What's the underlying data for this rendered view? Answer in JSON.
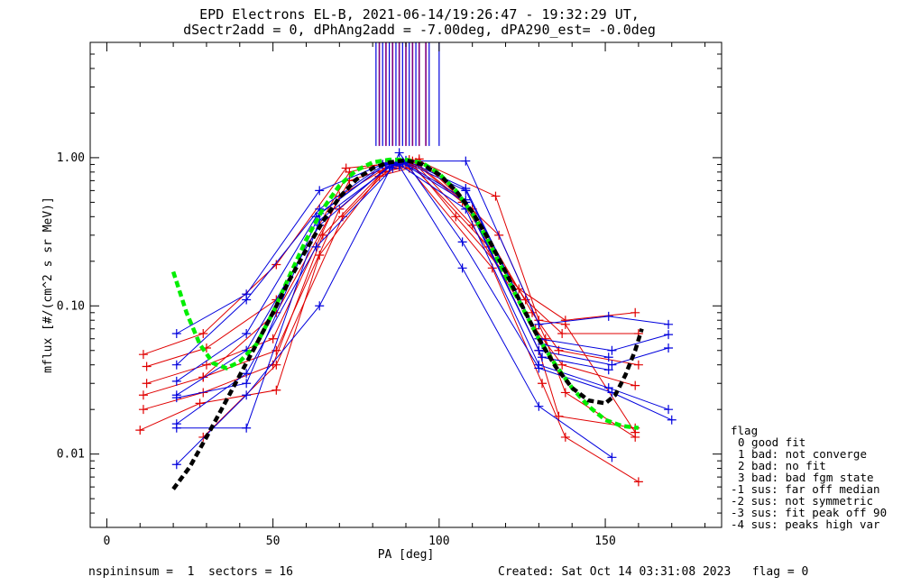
{
  "header": {
    "title_line1": "EPD Electrons EL-B, 2021-06-14/19:26:47 - 19:32:29 UT,",
    "title_line2": "dSectr2add = 0, dPhAng2add = -7.00deg, dPA290_est=  -0.0deg"
  },
  "legend": {
    "title": "flag",
    "items": [
      "0 good fit",
      "1 bad: not converge",
      "2 bad: no fit",
      "3 bad: bad fgm state",
      "-1 sus: far off median",
      "-2 sus: not symmetric",
      "-3 sus: fit peak off 90",
      "-4 sus: peaks high var"
    ]
  },
  "footer": {
    "left": "nspininsum =  1  sectors = 16",
    "right": "Created: Sat Oct 14 03:31:08 2023   flag = 0"
  },
  "colors": {
    "red": "#e00000",
    "blue": "#0000dd",
    "purple": "#800080",
    "green": "#00ee00",
    "black": "#000000"
  },
  "chart_data": {
    "type": "line",
    "xlabel": "PA [deg]",
    "ylabel": "mflux [#/(cm^2 s sr MeV)]",
    "xlim": [
      -5,
      185
    ],
    "ylim": [
      0.0032,
      6.0
    ],
    "yscale": "log",
    "xticks": [
      "0",
      "50",
      "100",
      "150"
    ],
    "yticks": [
      "0.01",
      "0.10",
      "1.00"
    ],
    "vertical_markers": {
      "blue": [
        81,
        83,
        85,
        87,
        89,
        91,
        93,
        97,
        100
      ],
      "purple": [
        82,
        84,
        86,
        88,
        90,
        92,
        94,
        96
      ],
      "y_range": [
        1.2,
        6.0
      ]
    },
    "series": [
      {
        "color": "red",
        "x": [
          11,
          29,
          51,
          72,
          83,
          91,
          105,
          124,
          138,
          159
        ],
        "y": [
          0.047,
          0.065,
          0.19,
          0.85,
          0.9,
          0.97,
          0.4,
          0.13,
          0.08,
          0.09
        ]
      },
      {
        "color": "red",
        "x": [
          12,
          30,
          51,
          73,
          84,
          92,
          107,
          126,
          137,
          160
        ],
        "y": [
          0.039,
          0.052,
          0.11,
          0.8,
          0.92,
          0.95,
          0.5,
          0.11,
          0.065,
          0.065
        ]
      },
      {
        "color": "red",
        "x": [
          12,
          30,
          50,
          70,
          85,
          93,
          110,
          128,
          136,
          160
        ],
        "y": [
          0.03,
          0.04,
          0.06,
          0.55,
          0.88,
          0.93,
          0.45,
          0.09,
          0.05,
          0.04
        ]
      },
      {
        "color": "red",
        "x": [
          11,
          29,
          51,
          70,
          84,
          93,
          110,
          129,
          137,
          159
        ],
        "y": [
          0.025,
          0.033,
          0.05,
          0.45,
          0.85,
          0.9,
          0.35,
          0.07,
          0.04,
          0.029
        ]
      },
      {
        "color": "red",
        "x": [
          11,
          29,
          50,
          65,
          83,
          92,
          115,
          130,
          136,
          159
        ],
        "y": [
          0.02,
          0.026,
          0.04,
          0.3,
          0.8,
          0.88,
          0.25,
          0.05,
          0.018,
          0.015
        ]
      },
      {
        "color": "red",
        "x": [
          10,
          28,
          51,
          64,
          82,
          91,
          116,
          131,
          138,
          160
        ],
        "y": [
          0.0145,
          0.022,
          0.027,
          0.22,
          0.75,
          0.85,
          0.18,
          0.03,
          0.013,
          0.0065
        ]
      },
      {
        "color": "red",
        "x": [
          29,
          51,
          71,
          84,
          94,
          117,
          130,
          138,
          159
        ],
        "y": [
          0.013,
          0.04,
          0.4,
          0.8,
          0.95,
          0.55,
          0.08,
          0.075,
          0.014
        ]
      },
      {
        "color": "red",
        "x": [
          29,
          51,
          73,
          88,
          94,
          118,
          132,
          138,
          159
        ],
        "y": [
          0.033,
          0.09,
          0.7,
          0.9,
          0.98,
          0.3,
          0.06,
          0.026,
          0.013
        ]
      },
      {
        "color": "blue",
        "x": [
          21,
          42,
          64,
          83,
          90,
          108,
          130,
          151,
          169
        ],
        "y": [
          0.065,
          0.12,
          0.6,
          0.9,
          0.95,
          0.95,
          0.075,
          0.085,
          0.075
        ]
      },
      {
        "color": "blue",
        "x": [
          21,
          42,
          64,
          84,
          90,
          108,
          130,
          152,
          169
        ],
        "y": [
          0.04,
          0.11,
          0.45,
          0.92,
          0.93,
          0.6,
          0.06,
          0.05,
          0.064
        ]
      },
      {
        "color": "blue",
        "x": [
          21,
          42,
          63,
          84,
          89,
          108,
          130,
          152,
          169
        ],
        "y": [
          0.031,
          0.065,
          0.4,
          0.9,
          0.92,
          0.5,
          0.05,
          0.04,
          0.052
        ]
      },
      {
        "color": "blue",
        "x": [
          21,
          42,
          64,
          85,
          88,
          108,
          130,
          151,
          169
        ],
        "y": [
          0.025,
          0.05,
          0.35,
          0.88,
          0.9,
          0.45,
          0.04,
          0.028,
          0.02
        ]
      },
      {
        "color": "blue",
        "x": [
          21,
          42,
          63,
          86,
          88,
          107,
          130,
          152,
          170
        ],
        "y": [
          0.016,
          0.035,
          0.25,
          0.85,
          1.08,
          0.27,
          0.038,
          0.026,
          0.017
        ]
      },
      {
        "color": "blue",
        "x": [
          21,
          42,
          64,
          86,
          88,
          107,
          130,
          152
        ],
        "y": [
          0.0085,
          0.025,
          0.1,
          0.9,
          0.88,
          0.18,
          0.021,
          0.0095
        ]
      },
      {
        "color": "blue",
        "x": [
          21,
          42,
          64,
          85,
          89,
          108,
          131,
          151
        ],
        "y": [
          0.015,
          0.015,
          0.38,
          0.86,
          0.94,
          0.52,
          0.045,
          0.037
        ]
      },
      {
        "color": "blue",
        "x": [
          21,
          42,
          64,
          84,
          90,
          108,
          131,
          151
        ],
        "y": [
          0.024,
          0.03,
          0.42,
          0.9,
          0.96,
          0.62,
          0.055,
          0.045
        ]
      },
      {
        "color": "green",
        "style": "dashed",
        "x": [
          20,
          24,
          28,
          32,
          36,
          40,
          45,
          50,
          55,
          60,
          65,
          70,
          75,
          80,
          85,
          90,
          95,
          100,
          105,
          110,
          115,
          120,
          125,
          130,
          135,
          140,
          145,
          150,
          155,
          160
        ],
        "y": [
          0.17,
          0.09,
          0.055,
          0.041,
          0.038,
          0.042,
          0.055,
          0.09,
          0.16,
          0.28,
          0.45,
          0.65,
          0.82,
          0.93,
          0.97,
          0.97,
          0.92,
          0.78,
          0.6,
          0.42,
          0.27,
          0.16,
          0.098,
          0.06,
          0.04,
          0.028,
          0.021,
          0.017,
          0.0155,
          0.015
        ]
      },
      {
        "color": "black",
        "style": "dashed",
        "x": [
          20,
          25,
          30,
          35,
          40,
          45,
          50,
          55,
          60,
          65,
          70,
          75,
          80,
          85,
          90,
          95,
          100,
          105,
          110,
          115,
          120,
          125,
          130,
          135,
          140,
          145,
          150,
          153,
          156,
          159,
          161
        ],
        "y": [
          0.0058,
          0.0082,
          0.013,
          0.021,
          0.034,
          0.055,
          0.09,
          0.15,
          0.24,
          0.37,
          0.54,
          0.71,
          0.85,
          0.93,
          0.96,
          0.9,
          0.77,
          0.6,
          0.43,
          0.28,
          0.17,
          0.1,
          0.06,
          0.039,
          0.028,
          0.023,
          0.022,
          0.025,
          0.034,
          0.05,
          0.07
        ]
      }
    ]
  }
}
